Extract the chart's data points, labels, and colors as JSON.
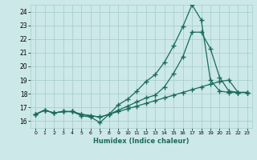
{
  "xlabel": "Humidex (Indice chaleur)",
  "bg_color": "#cce8e8",
  "grid_color": "#aacfcf",
  "line_color": "#1a6b5a",
  "xlim": [
    -0.5,
    23.5
  ],
  "ylim": [
    15.5,
    24.5
  ],
  "xticks": [
    0,
    1,
    2,
    3,
    4,
    5,
    6,
    7,
    8,
    9,
    10,
    11,
    12,
    13,
    14,
    15,
    16,
    17,
    18,
    19,
    20,
    21,
    22,
    23
  ],
  "yticks": [
    16,
    17,
    18,
    19,
    20,
    21,
    22,
    23,
    24
  ],
  "line1_x": [
    0,
    1,
    2,
    3,
    4,
    5,
    6,
    7,
    8,
    9,
    10,
    11,
    12,
    13,
    14,
    15,
    16,
    17,
    18,
    19,
    20,
    21,
    22,
    23
  ],
  "line1_y": [
    16.5,
    16.8,
    16.6,
    16.7,
    16.7,
    16.4,
    16.3,
    15.9,
    16.5,
    17.2,
    17.6,
    18.2,
    18.9,
    19.4,
    20.3,
    21.5,
    22.9,
    24.5,
    23.4,
    19.0,
    18.2,
    18.1,
    18.1,
    18.1
  ],
  "line2_x": [
    0,
    1,
    2,
    3,
    4,
    5,
    6,
    7,
    8,
    9,
    10,
    11,
    12,
    13,
    14,
    15,
    16,
    17,
    18,
    19,
    20,
    21,
    22,
    23
  ],
  "line2_y": [
    16.5,
    16.8,
    16.6,
    16.7,
    16.7,
    16.5,
    16.4,
    16.3,
    16.5,
    16.8,
    17.1,
    17.4,
    17.7,
    17.9,
    18.5,
    19.5,
    20.7,
    22.5,
    22.5,
    21.3,
    19.2,
    18.2,
    18.1,
    18.1
  ],
  "line3_x": [
    0,
    1,
    2,
    3,
    4,
    5,
    6,
    7,
    8,
    9,
    10,
    11,
    12,
    13,
    14,
    15,
    16,
    17,
    18,
    19,
    20,
    21,
    22,
    23
  ],
  "line3_y": [
    16.5,
    16.8,
    16.6,
    16.7,
    16.7,
    16.5,
    16.4,
    16.3,
    16.5,
    16.7,
    16.9,
    17.1,
    17.3,
    17.5,
    17.7,
    17.9,
    18.1,
    18.3,
    18.5,
    18.7,
    18.9,
    19.0,
    18.1,
    18.1
  ],
  "marker": "+",
  "markersize": 4,
  "linewidth": 0.9
}
